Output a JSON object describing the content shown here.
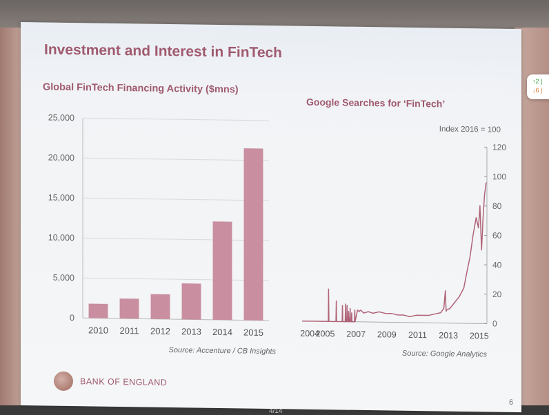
{
  "slide": {
    "title": "Investment and Interest in FinTech",
    "logo_text": "BANK OF ENGLAND",
    "page_number": "6"
  },
  "widget": {
    "up": "↑2 |",
    "down": "↓6 |"
  },
  "slide_counter": "4/14",
  "colors": {
    "accent": "#a05a6e",
    "bar": "#c98ea0",
    "line": "#b06478"
  },
  "chart_data": [
    {
      "type": "bar",
      "title": "Global FinTech Financing Activity ($mns)",
      "categories": [
        "2010",
        "2011",
        "2012",
        "2013",
        "2014",
        "2015"
      ],
      "values": [
        1800,
        2500,
        3100,
        4500,
        12300,
        21500
      ],
      "ylim": [
        0,
        25000
      ],
      "yticks": [
        "0",
        "5,000",
        "10,000",
        "15,000",
        "20,000",
        "25,000"
      ],
      "source": "Source: Accenture / CB Insights",
      "grid": true
    },
    {
      "type": "line",
      "title": "Google Searches for ‘FinTech’",
      "ylabel": "Index 2016 = 100",
      "ylim": [
        0,
        120
      ],
      "yticks": [
        "0",
        "20",
        "40",
        "60",
        "80",
        "100",
        "120"
      ],
      "xlim": [
        2004,
        2016
      ],
      "xticks": [
        "2004",
        "2005",
        "2007",
        "2009",
        "2011",
        "2013",
        "2015"
      ],
      "x": [
        2004,
        2004.5,
        2005,
        2005.5,
        2005.7,
        2005.72,
        2005.74,
        2005.8,
        2006,
        2006.2,
        2006.22,
        2006.24,
        2006.5,
        2006.6,
        2006.62,
        2006.64,
        2006.8,
        2006.82,
        2006.84,
        2006.9,
        2006.92,
        2006.94,
        2007,
        2007.02,
        2007.04,
        2007.1,
        2007.12,
        2007.14,
        2007.2,
        2007.22,
        2007.24,
        2007.4,
        2007.42,
        2007.44,
        2007.6,
        2007.7,
        2007.8,
        2008,
        2008.3,
        2008.6,
        2009,
        2009.4,
        2009.8,
        2010.2,
        2010.6,
        2011,
        2011.4,
        2011.8,
        2012.2,
        2012.6,
        2013,
        2013.2,
        2013.3,
        2013.35,
        2013.4,
        2013.6,
        2013.9,
        2014.2,
        2014.5,
        2014.7,
        2014.9,
        2015.1,
        2015.3,
        2015.45,
        2015.55,
        2015.65,
        2015.75,
        2015.85,
        2015.95
      ],
      "y": [
        0,
        0,
        0,
        0,
        0,
        22,
        0,
        0,
        0,
        0,
        14,
        0,
        0,
        0,
        11,
        0,
        0,
        12,
        0,
        0,
        11,
        0,
        0,
        7,
        0,
        0,
        9,
        0,
        0,
        6,
        0,
        0,
        8,
        0,
        8,
        7,
        8,
        6,
        7,
        6,
        7,
        6,
        6,
        5,
        5,
        4,
        5,
        5,
        5,
        6,
        7,
        10,
        22,
        8,
        9,
        10,
        14,
        18,
        24,
        35,
        45,
        60,
        72,
        65,
        80,
        50,
        72,
        88,
        96
      ]
    }
  ]
}
